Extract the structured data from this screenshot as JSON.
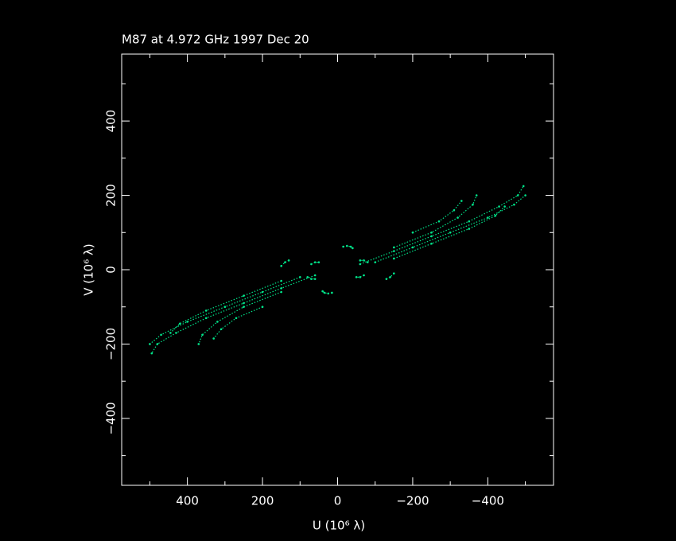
{
  "chart_data": {
    "type": "scatter",
    "title": "M87 at 4.972 GHz 1997 Dec 20",
    "xlabel": "U (10⁶ λ)",
    "ylabel": "V (10⁶ λ)",
    "color": "#00e58a",
    "xlim": [
      575,
      -575
    ],
    "ylim": [
      -580,
      580
    ],
    "xticks": [
      {
        "value": 400,
        "label": "400"
      },
      {
        "value": 200,
        "label": "200"
      },
      0,
      {
        "value": -200,
        "label": "−200"
      },
      {
        "value": -400,
        "label": "−400"
      }
    ],
    "yticks": [
      {
        "value": -400,
        "label": "−400"
      },
      {
        "value": -200,
        "label": "−200"
      },
      0,
      200,
      400
    ],
    "xminorticks": [
      500,
      300,
      100,
      -100,
      -300,
      -500
    ],
    "yminorticks": [
      -500,
      -300,
      -100,
      100,
      300,
      500
    ],
    "tracks": [
      {
        "u": [
          -60,
          -150,
          -250,
          -350,
          -430,
          -480,
          -495
        ],
        "v": [
          15,
          50,
          90,
          130,
          170,
          200,
          225
        ]
      },
      {
        "u": [
          -100,
          -200,
          -300,
          -400,
          -470,
          -500
        ],
        "v": [
          20,
          60,
          100,
          140,
          175,
          200
        ]
      },
      {
        "u": [
          -150,
          -250,
          -320,
          -360,
          -370
        ],
        "v": [
          60,
          100,
          140,
          175,
          200
        ]
      },
      {
        "u": [
          -200,
          -270,
          -310,
          -330
        ],
        "v": [
          100,
          130,
          160,
          185
        ]
      },
      {
        "u": [
          -150,
          -250,
          -350,
          -420,
          -445
        ],
        "v": [
          30,
          70,
          110,
          145,
          170
        ]
      },
      {
        "u": [
          60,
          150,
          250,
          350,
          430,
          480,
          495
        ],
        "v": [
          -15,
          -50,
          -90,
          -130,
          -170,
          -200,
          -225
        ]
      },
      {
        "u": [
          100,
          200,
          300,
          400,
          470,
          500
        ],
        "v": [
          -20,
          -60,
          -100,
          -140,
          -175,
          -200
        ]
      },
      {
        "u": [
          150,
          250,
          320,
          360,
          370
        ],
        "v": [
          -60,
          -100,
          -140,
          -175,
          -200
        ]
      },
      {
        "u": [
          200,
          270,
          310,
          330
        ],
        "v": [
          -100,
          -130,
          -160,
          -185
        ]
      },
      {
        "u": [
          150,
          250,
          350,
          420,
          445
        ],
        "v": [
          -30,
          -70,
          -110,
          -145,
          -170
        ]
      },
      {
        "u": [
          -15,
          -25,
          -35,
          -40
        ],
        "v": [
          62,
          64,
          62,
          58
        ]
      },
      {
        "u": [
          15,
          25,
          35,
          40
        ],
        "v": [
          -62,
          -64,
          -62,
          -58
        ]
      },
      {
        "u": [
          150,
          140,
          130
        ],
        "v": [
          10,
          20,
          25
        ]
      },
      {
        "u": [
          -150,
          -140,
          -130
        ],
        "v": [
          -10,
          -20,
          -25
        ]
      },
      {
        "u": [
          -70,
          -60,
          -50
        ],
        "v": [
          -15,
          -20,
          -20
        ]
      },
      {
        "u": [
          70,
          60,
          50
        ],
        "v": [
          15,
          20,
          20
        ]
      },
      {
        "u": [
          80,
          70,
          60
        ],
        "v": [
          -20,
          -25,
          -25
        ]
      },
      {
        "u": [
          -80,
          -70,
          -60
        ],
        "v": [
          20,
          25,
          25
        ]
      }
    ]
  }
}
